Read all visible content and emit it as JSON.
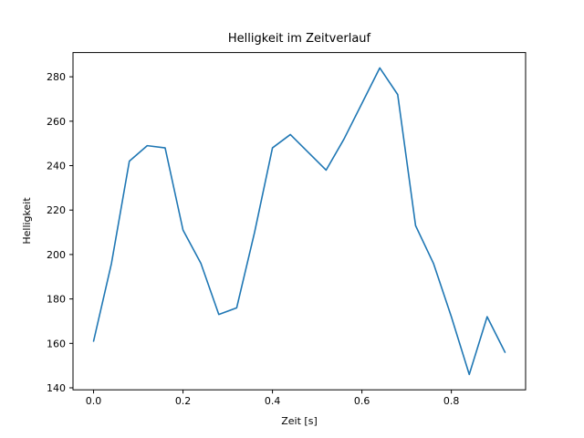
{
  "chart_data": {
    "type": "line",
    "title": "Helligkeit im Zeitverlauf",
    "xlabel": "Zeit [s]",
    "ylabel": "Helligkeit",
    "x": [
      0.0,
      0.04,
      0.08,
      0.12,
      0.16,
      0.2,
      0.24,
      0.28,
      0.32,
      0.36,
      0.4,
      0.44,
      0.48,
      0.52,
      0.56,
      0.6,
      0.64,
      0.68,
      0.72,
      0.76,
      0.8,
      0.84,
      0.88,
      0.92
    ],
    "y": [
      161,
      196,
      242,
      249,
      248,
      211,
      196,
      173,
      176,
      210,
      248,
      254,
      246,
      238,
      252,
      268,
      284,
      272,
      213,
      196,
      172,
      146,
      172,
      156
    ],
    "xlim": [
      -0.046,
      0.966
    ],
    "ylim": [
      139.1,
      290.9
    ],
    "xticks": [
      0.0,
      0.2,
      0.4,
      0.6,
      0.8
    ],
    "xtick_labels": [
      "0.0",
      "0.2",
      "0.4",
      "0.6",
      "0.8"
    ],
    "yticks": [
      140,
      160,
      180,
      200,
      220,
      240,
      260,
      280
    ],
    "ytick_labels": [
      "140",
      "160",
      "180",
      "200",
      "220",
      "240",
      "260",
      "280"
    ],
    "line_color": "#1f77b4",
    "frame_color": "#000000",
    "grid": false,
    "legend": "none"
  }
}
